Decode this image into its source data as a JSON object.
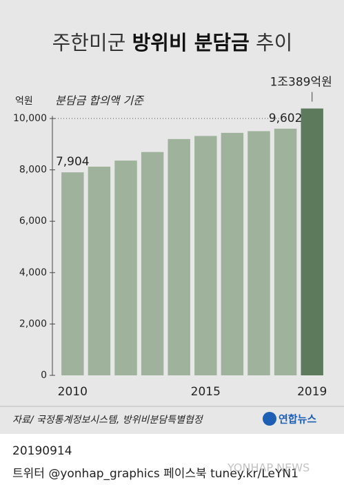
{
  "chart_data": {
    "type": "bar",
    "title_parts": [
      "주한미군",
      "방위비 분담금",
      "추이"
    ],
    "y_unit": "억원",
    "subtitle": "분담금 합의액 기준",
    "categories": [
      "2010",
      null,
      null,
      null,
      null,
      "2015",
      null,
      null,
      null,
      "2019"
    ],
    "values": [
      7904,
      8125,
      8361,
      8695,
      9200,
      9320,
      9441,
      9507,
      9602,
      10389
    ],
    "value_labels": [
      "7,904",
      null,
      null,
      null,
      null,
      null,
      null,
      null,
      "9,602",
      "1조389억원"
    ],
    "color": "#9fb29b",
    "highlight_color": "#5e7a5c",
    "ylim": [
      0,
      10500
    ],
    "yticks": [
      0,
      {
        "value": 2000,
        "label": "2,000"
      },
      {
        "value": 4000,
        "label": "4,000"
      },
      {
        "value": 6000,
        "label": "6,000"
      },
      {
        "value": 8000,
        "label": "8,000"
      },
      {
        "value": 10000,
        "label": "10,000"
      }
    ],
    "source": "자료/ 국정통계정보시스템, 방위비분담특별협정",
    "logo": "연합뉴스",
    "date": "20190914",
    "footer": "트위터 @yonhap_graphics  페이스북 tuney.kr/LeYN1",
    "watermark": "YONHAP NEWS"
  }
}
